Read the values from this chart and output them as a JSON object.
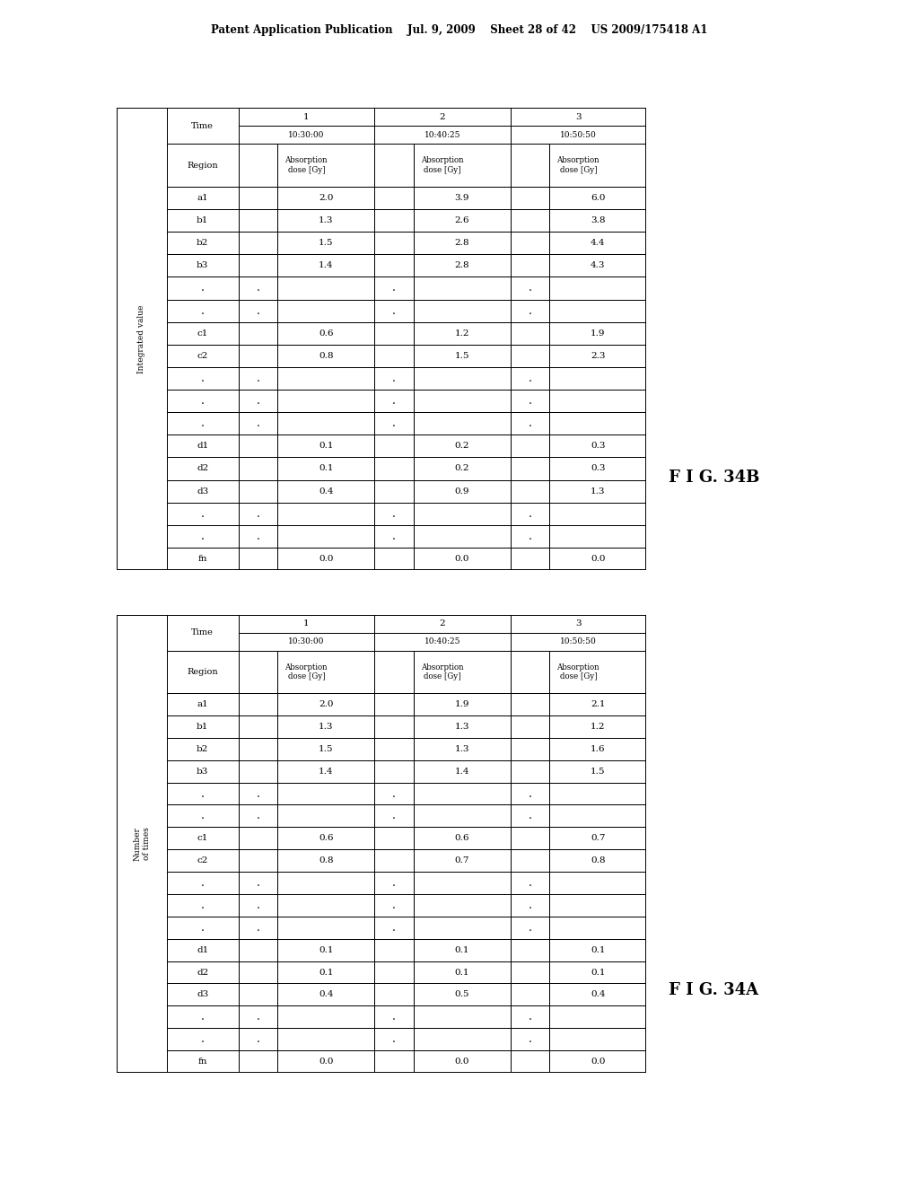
{
  "header_text": "Patent Application Publication    Jul. 9, 2009    Sheet 28 of 42    US 2009/175418 A1",
  "fig_label_A": "F I G. 34A",
  "fig_label_B": "F I G. 34B",
  "table_A": {
    "left_label": "Number\nof times",
    "is_integrated": false,
    "col_headers": [
      [
        "1",
        "10:30:00"
      ],
      [
        "2",
        "10:40:25"
      ],
      [
        "3",
        "10:50:50"
      ]
    ],
    "rows": [
      [
        "a1",
        "2.0",
        "1.9",
        "2.1"
      ],
      [
        "b1",
        "1.3",
        "1.3",
        "1.2"
      ],
      [
        "b2",
        "1.5",
        "1.3",
        "1.6"
      ],
      [
        "b3",
        "1.4",
        "1.4",
        "1.5"
      ],
      [
        ".",
        "",
        "",
        ""
      ],
      [
        ".",
        "",
        "",
        ""
      ],
      [
        "c1",
        "0.6",
        "0.6",
        "0.7"
      ],
      [
        "c2",
        "0.8",
        "0.7",
        "0.8"
      ],
      [
        ".",
        "",
        "",
        ""
      ],
      [
        ".",
        "",
        "",
        ""
      ],
      [
        ".",
        "",
        "",
        ""
      ],
      [
        "d1",
        "0.1",
        "0.1",
        "0.1"
      ],
      [
        "d2",
        "0.1",
        "0.1",
        "0.1"
      ],
      [
        "d3",
        "0.4",
        "0.5",
        "0.4"
      ],
      [
        ".",
        "",
        "",
        ""
      ],
      [
        ".",
        "",
        "",
        ""
      ],
      [
        "fn",
        "0.0",
        "0.0",
        "0.0"
      ]
    ]
  },
  "table_B": {
    "left_label": "Integrated value",
    "is_integrated": true,
    "col_headers": [
      [
        "1",
        "10:30:00"
      ],
      [
        "2",
        "10:40:25"
      ],
      [
        "3",
        "10:50:50"
      ]
    ],
    "rows": [
      [
        "a1",
        "2.0",
        "3.9",
        "6.0"
      ],
      [
        "b1",
        "1.3",
        "2.6",
        "3.8"
      ],
      [
        "b2",
        "1.5",
        "2.8",
        "4.4"
      ],
      [
        "b3",
        "1.4",
        "2.8",
        "4.3"
      ],
      [
        ".",
        "",
        "",
        ""
      ],
      [
        ".",
        "",
        "",
        ""
      ],
      [
        "c1",
        "0.6",
        "1.2",
        "1.9"
      ],
      [
        "c2",
        "0.8",
        "1.5",
        "2.3"
      ],
      [
        ".",
        "",
        "",
        ""
      ],
      [
        ".",
        "",
        "",
        ""
      ],
      [
        ".",
        "",
        "",
        ""
      ],
      [
        "d1",
        "0.1",
        "0.2",
        "0.3"
      ],
      [
        "d2",
        "0.1",
        "0.2",
        "0.3"
      ],
      [
        "d3",
        "0.4",
        "0.9",
        "1.3"
      ],
      [
        ".",
        "",
        "",
        ""
      ],
      [
        ".",
        "",
        "",
        ""
      ],
      [
        "fn",
        "0.0",
        "0.0",
        "0.0"
      ]
    ]
  }
}
